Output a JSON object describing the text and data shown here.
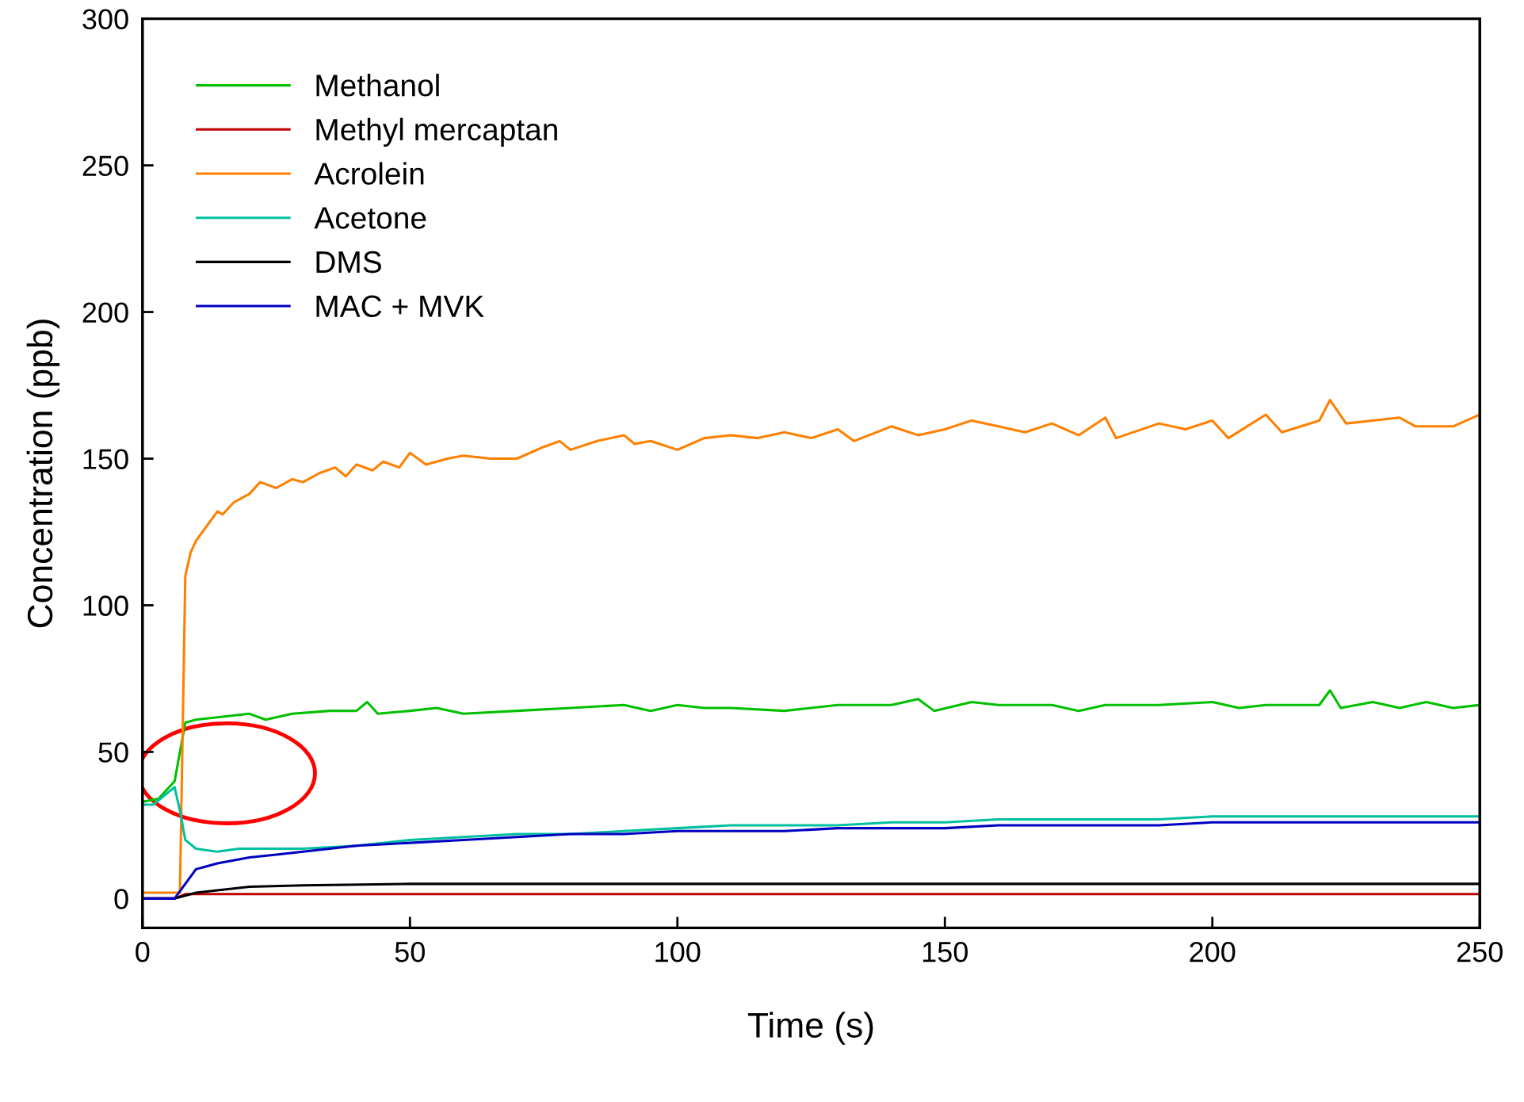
{
  "chart_data": {
    "type": "line",
    "xlabel": "Time (s)",
    "ylabel": "Concentration (ppb)",
    "xlim": [
      0,
      250
    ],
    "xticks": [
      0,
      50,
      100,
      150,
      200,
      250
    ],
    "ylim": [
      -10,
      300
    ],
    "yticks": [
      0,
      50,
      100,
      150,
      200,
      250,
      300
    ],
    "grid": false,
    "legend": "top left",
    "line_style": "solid",
    "marker": "none",
    "series": [
      {
        "name": "Methanol",
        "color": "#00c000",
        "x": [
          0,
          3,
          5,
          6,
          7,
          8,
          10,
          15,
          20,
          23,
          28,
          35,
          40,
          42,
          44,
          50,
          55,
          60,
          70,
          80,
          90,
          95,
          100,
          105,
          110,
          120,
          130,
          140,
          145,
          148,
          155,
          160,
          170,
          175,
          180,
          190,
          200,
          205,
          210,
          215,
          220,
          222,
          224,
          230,
          235,
          240,
          245,
          250
        ],
        "values": [
          33,
          34,
          38,
          40,
          50,
          60,
          61,
          62,
          63,
          61,
          63,
          64,
          64,
          67,
          63,
          64,
          65,
          63,
          64,
          65,
          66,
          64,
          66,
          65,
          65,
          64,
          66,
          66,
          68,
          64,
          67,
          66,
          66,
          64,
          66,
          66,
          67,
          65,
          66,
          66,
          66,
          71,
          65,
          67,
          65,
          67,
          65,
          66
        ]
      },
      {
        "name": "Methyl mercaptan",
        "color": "#c00000",
        "x": [
          0,
          6,
          8,
          20,
          50,
          100,
          150,
          200,
          250
        ],
        "values": [
          0,
          0,
          1.5,
          1.5,
          1.5,
          1.5,
          1.5,
          1.5,
          1.5
        ]
      },
      {
        "name": "Acrolein",
        "color": "#ff8000",
        "x": [
          0,
          6,
          7,
          8,
          9,
          10,
          12,
          14,
          15,
          17,
          20,
          22,
          25,
          28,
          30,
          33,
          36,
          38,
          40,
          43,
          45,
          48,
          50,
          53,
          57,
          60,
          65,
          70,
          75,
          78,
          80,
          85,
          90,
          92,
          95,
          100,
          105,
          110,
          115,
          120,
          125,
          130,
          133,
          140,
          145,
          150,
          155,
          160,
          165,
          170,
          175,
          180,
          182,
          190,
          195,
          200,
          203,
          210,
          213,
          220,
          222,
          225,
          230,
          235,
          238,
          245,
          250
        ],
        "values": [
          2,
          2,
          2,
          110,
          118,
          122,
          127,
          132,
          131,
          135,
          138,
          142,
          140,
          143,
          142,
          145,
          147,
          144,
          148,
          146,
          149,
          147,
          152,
          148,
          150,
          151,
          150,
          150,
          154,
          156,
          153,
          156,
          158,
          155,
          156,
          153,
          157,
          158,
          157,
          159,
          157,
          160,
          156,
          161,
          158,
          160,
          163,
          161,
          159,
          162,
          158,
          164,
          157,
          162,
          160,
          163,
          157,
          165,
          159,
          163,
          170,
          162,
          163,
          164,
          161,
          161,
          165
        ]
      },
      {
        "name": "Acetone",
        "color": "#00c0a0",
        "x": [
          0,
          2,
          4,
          6,
          7,
          8,
          10,
          14,
          18,
          25,
          30,
          40,
          50,
          60,
          70,
          80,
          90,
          100,
          110,
          120,
          130,
          140,
          150,
          160,
          170,
          180,
          190,
          200,
          210,
          220,
          230,
          240,
          250
        ],
        "values": [
          32,
          32,
          35,
          38,
          30,
          20,
          17,
          16,
          17,
          17,
          17,
          18,
          20,
          21,
          22,
          22,
          23,
          24,
          25,
          25,
          25,
          26,
          26,
          27,
          27,
          27,
          27,
          28,
          28,
          28,
          28,
          28,
          28
        ]
      },
      {
        "name": "DMS",
        "color": "#000000",
        "x": [
          0,
          6,
          10,
          20,
          30,
          50,
          100,
          150,
          200,
          250
        ],
        "values": [
          0,
          0,
          2,
          4,
          4.5,
          5,
          5,
          5,
          5,
          5
        ]
      },
      {
        "name": "MAC + MVK",
        "color": "#0000c0",
        "x": [
          0,
          6,
          8,
          10,
          14,
          20,
          25,
          30,
          40,
          50,
          60,
          70,
          80,
          90,
          100,
          110,
          120,
          130,
          140,
          150,
          160,
          170,
          180,
          190,
          200,
          210,
          220,
          230,
          240,
          250
        ],
        "values": [
          0,
          0,
          5,
          10,
          12,
          14,
          15,
          16,
          18,
          19,
          20,
          21,
          22,
          22,
          23,
          23,
          23,
          24,
          24,
          24,
          25,
          25,
          25,
          25,
          26,
          26,
          26,
          26,
          26,
          26
        ]
      }
    ]
  }
}
